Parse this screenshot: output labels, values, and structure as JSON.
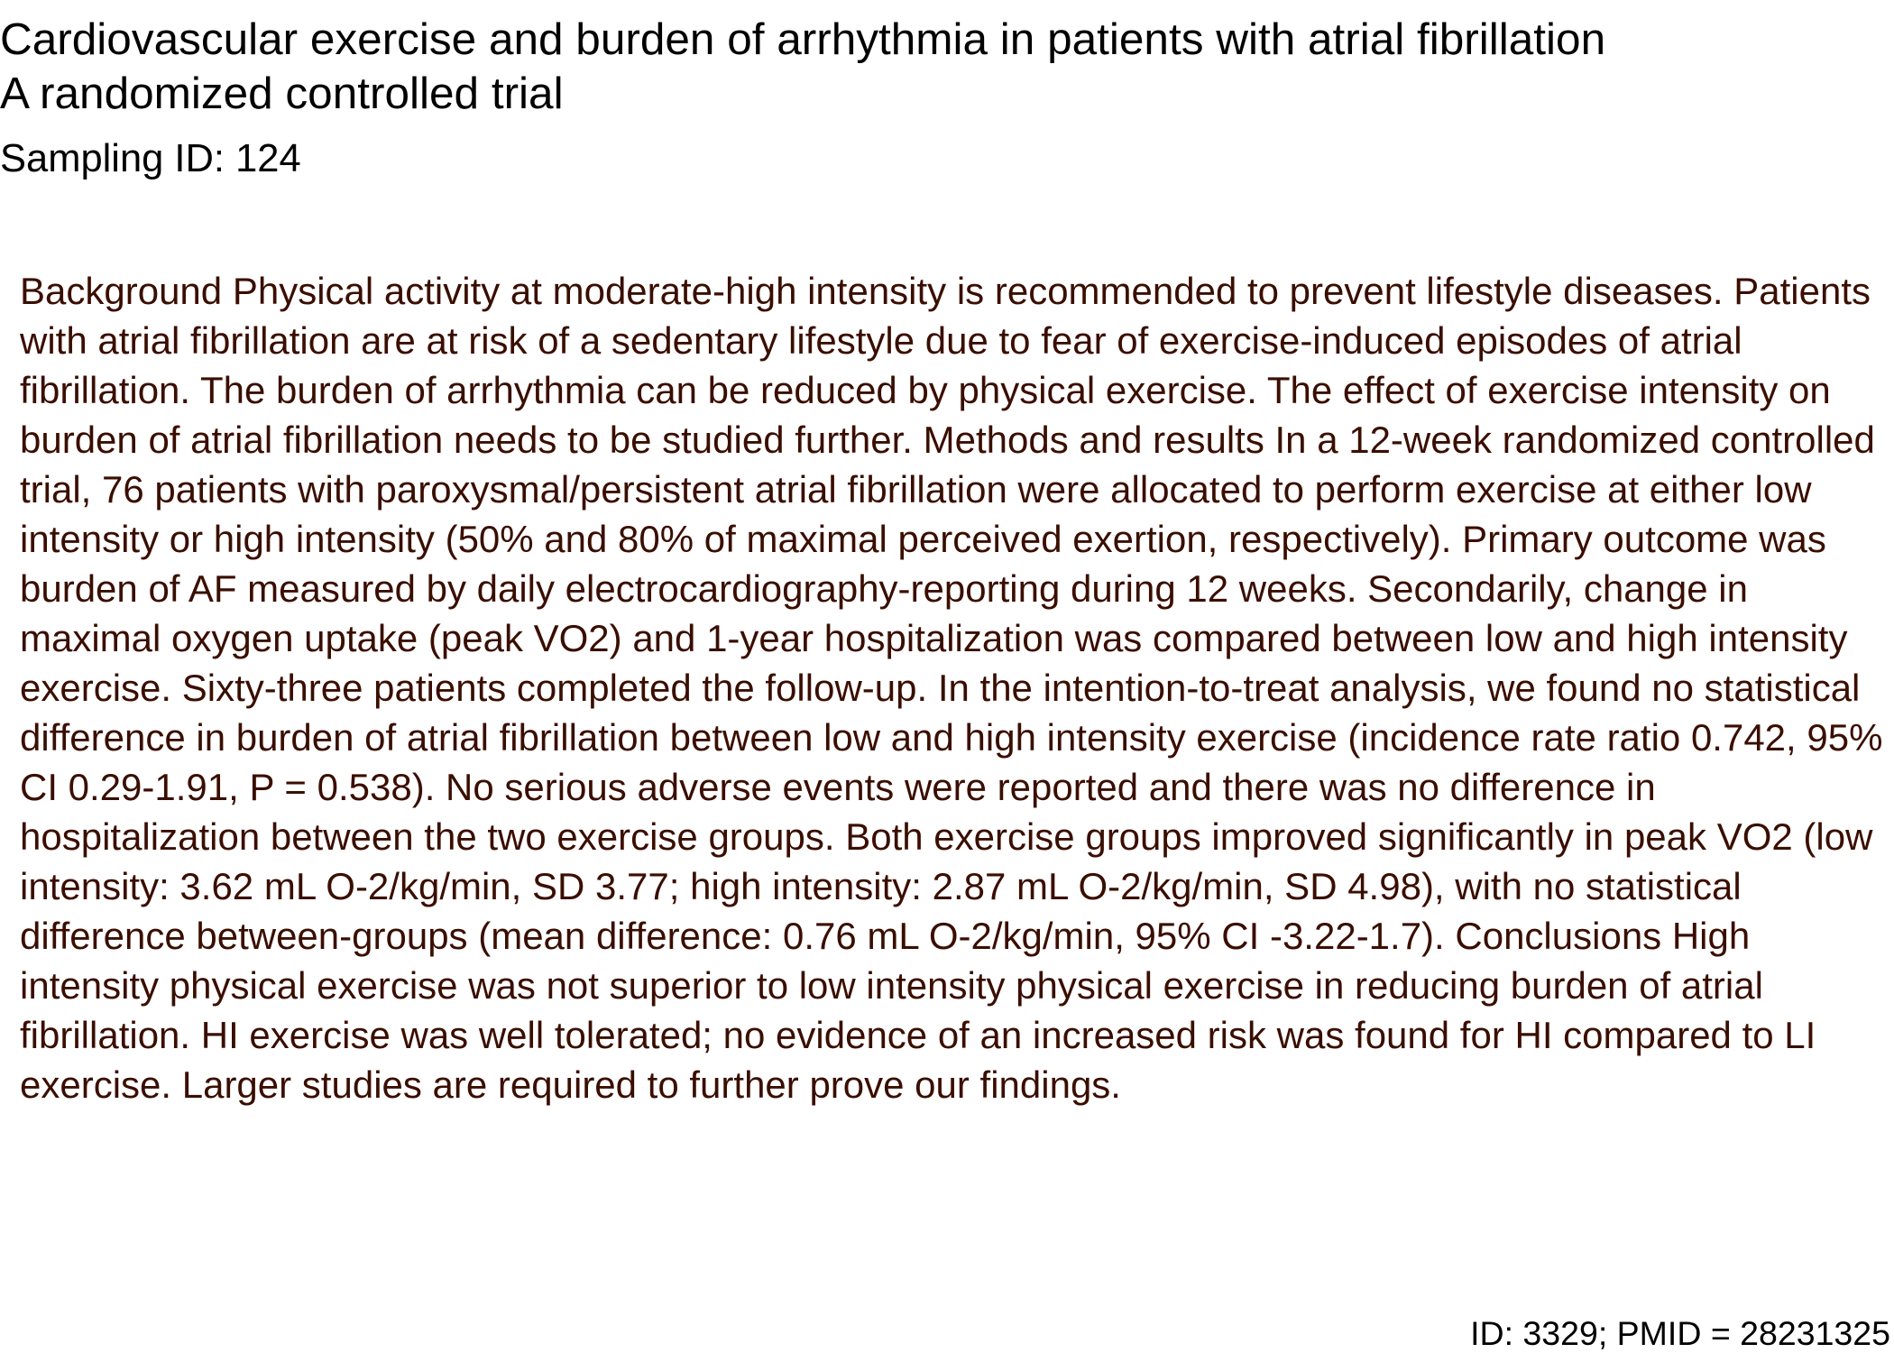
{
  "document": {
    "title": "Cardiovascular exercise and burden of arrhythmia in patients with atrial fibrillation A randomized controlled trial",
    "sampling_id": "Sampling ID: 124",
    "abstract": "Background Physical activity at moderate-high intensity is recommended to prevent lifestyle diseases. Patients with atrial fibrillation are at risk of a sedentary lifestyle due to fear of exercise-induced episodes of atrial fibrillation. The burden of arrhythmia can be reduced by physical exercise. The effect of exercise intensity on burden of atrial fibrillation needs to be studied further. Methods and results In a 12-week randomized controlled trial, 76 patients with paroxysmal/persistent atrial fibrillation were allocated to perform exercise at either low intensity or high intensity (50% and 80% of maximal perceived exertion, respectively). Primary outcome was burden of AF measured by daily electrocardiography-reporting during 12 weeks. Secondarily, change in maximal oxygen uptake (peak VO2) and 1-year hospitalization was compared between low and high intensity exercise. Sixty-three patients completed the follow-up. In the intention-to-treat analysis, we found no statistical difference in burden of atrial fibrillation between low and high intensity exercise (incidence rate ratio 0.742, 95% CI 0.29-1.91, P = 0.538). No serious adverse events were reported and there was no difference in hospitalization between the two exercise groups. Both exercise groups improved significantly in peak VO2 (low intensity: 3.62 mL O-2/kg/min, SD 3.77; high intensity: 2.87 mL O-2/kg/min, SD 4.98), with no statistical difference between-groups (mean difference: 0.76 mL O-2/kg/min, 95% CI -3.22-1.7). Conclusions High intensity physical exercise was not superior to low intensity physical exercise in reducing burden of atrial fibrillation. HI exercise was well tolerated; no evidence of an increased risk was found for HI compared to LI exercise. Larger studies are required to further prove our findings.",
    "footer_id": "ID: 3329; PMID = 28231325"
  },
  "colors": {
    "title_text": "#000000",
    "abstract_text": "#3a0e00",
    "background": "#ffffff"
  }
}
